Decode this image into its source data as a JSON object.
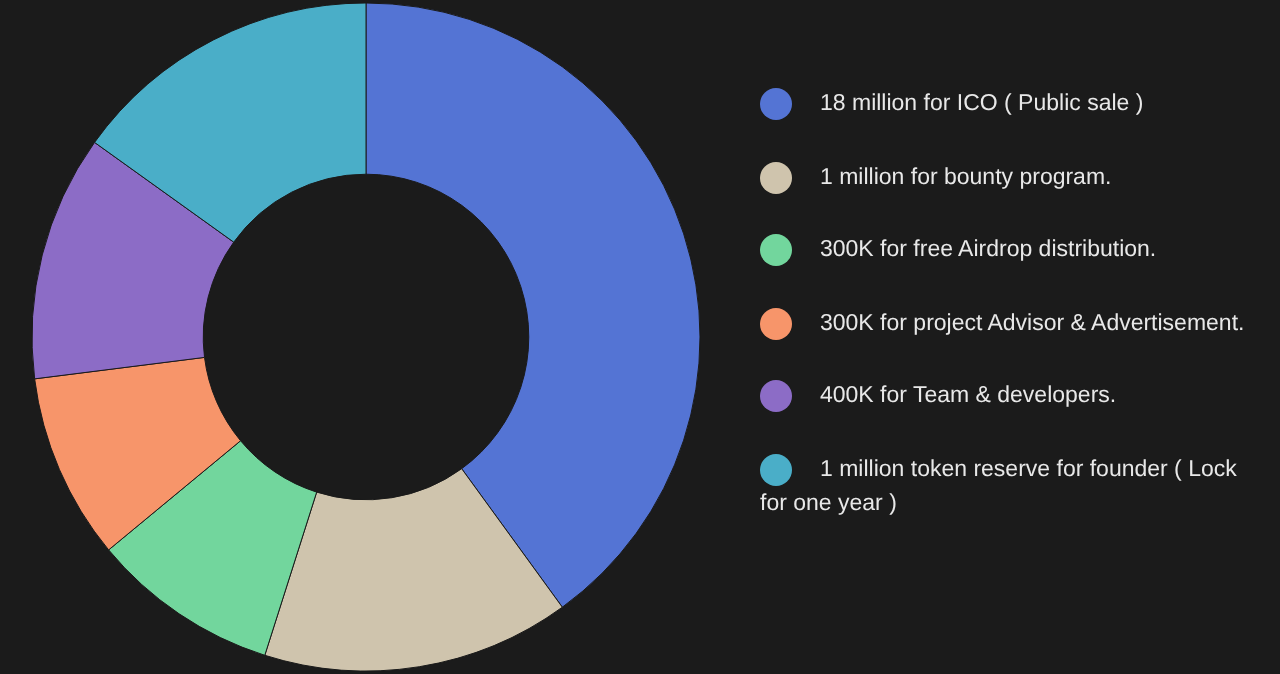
{
  "chart_data": {
    "type": "donut",
    "categories": [
      "18 million for ICO ( Public sale )",
      "1 million for bounty program.",
      "300K for free Airdrop distribution.",
      "300K for project Advisor & Advertisement.",
      "400K for Team & developers.",
      "1 million token reserve for founder ( Lock for one year )"
    ],
    "values": [
      40,
      14.9,
      9.1,
      9,
      11.9,
      15.1
    ],
    "colors": [
      "#5474d4",
      "#cfc4ad",
      "#72d69d",
      "#f7956a",
      "#8c6cc6",
      "#4aaec8"
    ],
    "legend": "right"
  }
}
